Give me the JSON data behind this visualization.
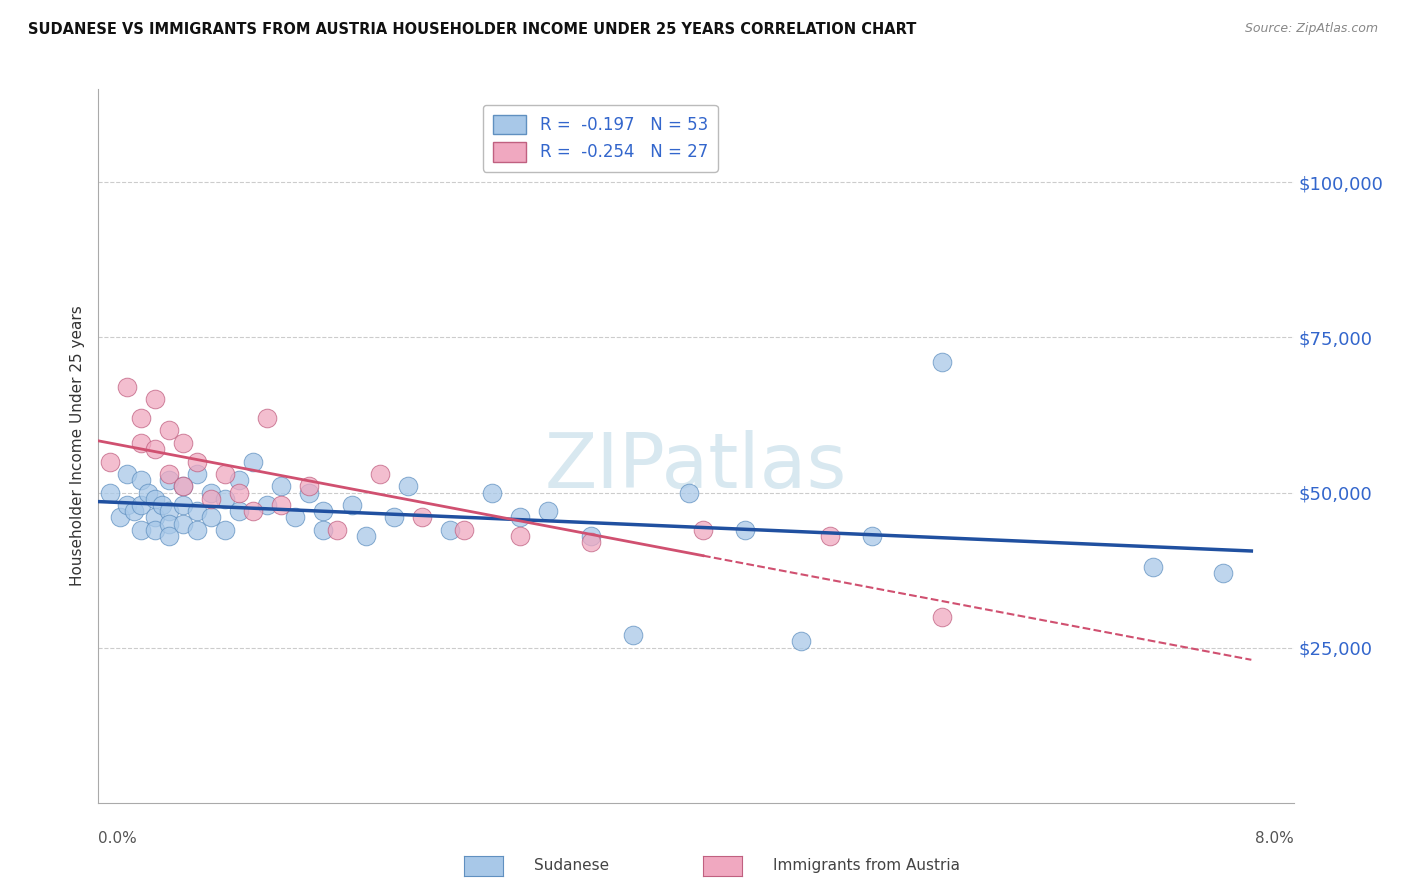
{
  "title": "SUDANESE VS IMMIGRANTS FROM AUSTRIA HOUSEHOLDER INCOME UNDER 25 YEARS CORRELATION CHART",
  "source": "Source: ZipAtlas.com",
  "ylabel": "Householder Income Under 25 years",
  "legend_entry_blue": "R =  -0.197   N = 53",
  "legend_entry_pink": "R =  -0.254   N = 27",
  "legend_labels_bottom": [
    "Sudanese",
    "Immigrants from Austria"
  ],
  "ytick_labels": [
    "$25,000",
    "$50,000",
    "$75,000",
    "$100,000"
  ],
  "ytick_values": [
    25000,
    50000,
    75000,
    100000
  ],
  "ylim": [
    0,
    115000
  ],
  "xlim": [
    0.0,
    0.085
  ],
  "blue_scatter_color": "#a8c8e8",
  "blue_edge_color": "#6090c0",
  "pink_scatter_color": "#f0a8c0",
  "pink_edge_color": "#c06080",
  "blue_line_color": "#2050a0",
  "pink_line_color": "#d05070",
  "grid_color": "#cccccc",
  "bg_color": "#ffffff",
  "watermark_color": "#d8e8f0",
  "sudanese_x": [
    0.0008,
    0.0015,
    0.002,
    0.002,
    0.0025,
    0.003,
    0.003,
    0.003,
    0.0035,
    0.004,
    0.004,
    0.004,
    0.0045,
    0.005,
    0.005,
    0.005,
    0.005,
    0.006,
    0.006,
    0.006,
    0.007,
    0.007,
    0.007,
    0.008,
    0.008,
    0.009,
    0.009,
    0.01,
    0.01,
    0.011,
    0.012,
    0.013,
    0.014,
    0.015,
    0.016,
    0.016,
    0.018,
    0.019,
    0.021,
    0.022,
    0.025,
    0.028,
    0.03,
    0.032,
    0.035,
    0.038,
    0.042,
    0.046,
    0.05,
    0.055,
    0.06,
    0.075,
    0.08
  ],
  "sudanese_y": [
    50000,
    46000,
    48000,
    53000,
    47000,
    52000,
    48000,
    44000,
    50000,
    49000,
    46000,
    44000,
    48000,
    47000,
    52000,
    45000,
    43000,
    51000,
    48000,
    45000,
    53000,
    47000,
    44000,
    50000,
    46000,
    49000,
    44000,
    52000,
    47000,
    55000,
    48000,
    51000,
    46000,
    50000,
    47000,
    44000,
    48000,
    43000,
    46000,
    51000,
    44000,
    50000,
    46000,
    47000,
    43000,
    27000,
    50000,
    44000,
    26000,
    43000,
    71000,
    38000,
    37000
  ],
  "austria_x": [
    0.0008,
    0.002,
    0.003,
    0.003,
    0.004,
    0.004,
    0.005,
    0.005,
    0.006,
    0.006,
    0.007,
    0.008,
    0.009,
    0.01,
    0.011,
    0.012,
    0.013,
    0.015,
    0.017,
    0.02,
    0.023,
    0.026,
    0.03,
    0.035,
    0.043,
    0.052,
    0.06
  ],
  "austria_y": [
    55000,
    67000,
    62000,
    58000,
    65000,
    57000,
    60000,
    53000,
    58000,
    51000,
    55000,
    49000,
    53000,
    50000,
    47000,
    62000,
    48000,
    51000,
    44000,
    53000,
    46000,
    44000,
    43000,
    42000,
    44000,
    43000,
    30000
  ]
}
